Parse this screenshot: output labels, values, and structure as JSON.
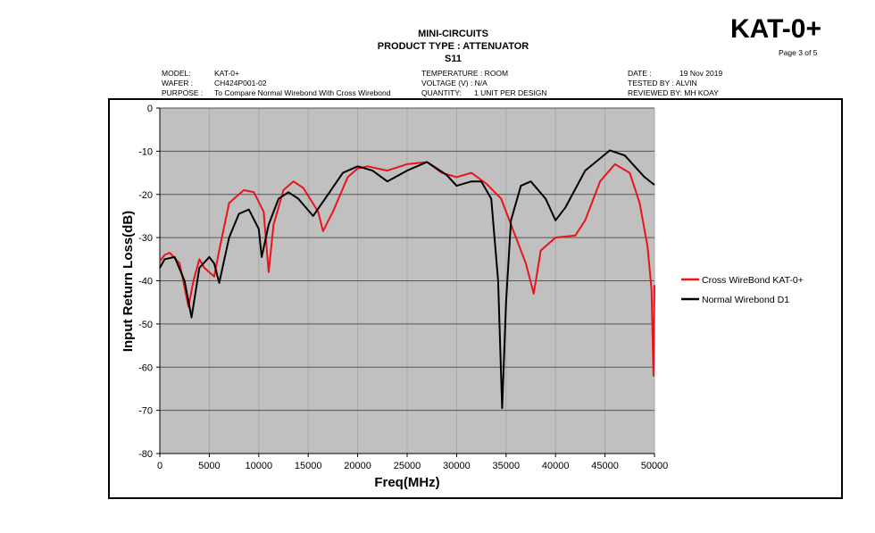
{
  "header": {
    "company": "MINI-CIRCUITS",
    "product_type": "PRODUCT TYPE : ATTENUATOR",
    "parameter": "S11",
    "part_number": "KAT-0+",
    "page": "Page 3 of 5",
    "model_label": "MODEL:",
    "model_value": "KAT-0+",
    "wafer_label": "WAFER :",
    "wafer_value": "CH424P001-02",
    "purpose_label": "PURPOSE :",
    "purpose_value": "To Compare Normal Wirebond With Cross Wirebond",
    "temperature": "TEMPERATURE : ROOM",
    "voltage": "VOLTAGE (V) : N/A",
    "quantity_label": "QUANTITY:",
    "quantity_value": "1 UNIT PER DESIGN",
    "date_label": "DATE :",
    "date_value": "19 Nov 2019",
    "tested_by": "TESTED BY : ALVIN",
    "reviewed_by": "REVIEWED BY: MH KOAY"
  },
  "chart_data": {
    "type": "line",
    "title": "S11",
    "xlabel": "Freq(MHz)",
    "ylabel": "Input Return Loss(dB)",
    "xlim": [
      0,
      50000
    ],
    "ylim": [
      -80,
      0
    ],
    "xticks": [
      "0",
      "5000",
      "10000",
      "15000",
      "20000",
      "25000",
      "30000",
      "35000",
      "40000",
      "45000",
      "50000"
    ],
    "yticks": [
      "0",
      "-10",
      "-20",
      "-30",
      "-40",
      "-50",
      "-60",
      "-70",
      "-80"
    ],
    "grid": true,
    "legend_position": "right",
    "series": [
      {
        "name": "Cross WireBond KAT-0+",
        "color": "#e8141b",
        "points": [
          [
            0,
            -35.5
          ],
          [
            500,
            -34
          ],
          [
            1000,
            -33.5
          ],
          [
            2000,
            -36
          ],
          [
            2900,
            -46
          ],
          [
            3400,
            -40
          ],
          [
            4000,
            -35
          ],
          [
            4500,
            -37
          ],
          [
            5500,
            -39
          ],
          [
            6000,
            -33
          ],
          [
            7000,
            -22
          ],
          [
            8500,
            -19
          ],
          [
            9500,
            -19.5
          ],
          [
            10500,
            -24
          ],
          [
            11000,
            -38
          ],
          [
            11500,
            -27
          ],
          [
            12500,
            -19
          ],
          [
            13500,
            -17
          ],
          [
            14500,
            -18.5
          ],
          [
            16000,
            -24
          ],
          [
            16500,
            -28.5
          ],
          [
            17500,
            -24
          ],
          [
            19000,
            -16
          ],
          [
            20000,
            -14
          ],
          [
            21000,
            -13.5
          ],
          [
            23000,
            -14.5
          ],
          [
            25000,
            -13
          ],
          [
            27000,
            -12.5
          ],
          [
            28500,
            -15
          ],
          [
            30000,
            -16
          ],
          [
            31500,
            -15
          ],
          [
            33000,
            -17.5
          ],
          [
            34500,
            -21
          ],
          [
            36000,
            -30
          ],
          [
            37000,
            -36
          ],
          [
            37800,
            -43
          ],
          [
            38500,
            -33
          ],
          [
            40000,
            -30
          ],
          [
            42000,
            -29.5
          ],
          [
            43000,
            -26
          ],
          [
            44500,
            -17
          ],
          [
            46000,
            -13
          ],
          [
            47500,
            -15
          ],
          [
            48500,
            -22
          ],
          [
            49300,
            -32
          ],
          [
            49700,
            -42
          ],
          [
            49900,
            -62
          ],
          [
            50000,
            -41
          ]
        ]
      },
      {
        "name": "Normal Wirebond D1",
        "color": "#000000",
        "points": [
          [
            0,
            -37
          ],
          [
            500,
            -35
          ],
          [
            1500,
            -34.5
          ],
          [
            2500,
            -40
          ],
          [
            3200,
            -48.5
          ],
          [
            4000,
            -37
          ],
          [
            5000,
            -34.5
          ],
          [
            5500,
            -36
          ],
          [
            6000,
            -40.5
          ],
          [
            7000,
            -30
          ],
          [
            8000,
            -24.5
          ],
          [
            9000,
            -23.5
          ],
          [
            10000,
            -28
          ],
          [
            10300,
            -34.5
          ],
          [
            11000,
            -27
          ],
          [
            12000,
            -21
          ],
          [
            13000,
            -19.5
          ],
          [
            14000,
            -21
          ],
          [
            15500,
            -25
          ],
          [
            17000,
            -20
          ],
          [
            18500,
            -15
          ],
          [
            20000,
            -13.5
          ],
          [
            21500,
            -14.5
          ],
          [
            23000,
            -17
          ],
          [
            25000,
            -14.5
          ],
          [
            27000,
            -12.5
          ],
          [
            29000,
            -15.5
          ],
          [
            30000,
            -18
          ],
          [
            31500,
            -17
          ],
          [
            32500,
            -17
          ],
          [
            33500,
            -21
          ],
          [
            34200,
            -40
          ],
          [
            34600,
            -69.5
          ],
          [
            35000,
            -45
          ],
          [
            35500,
            -26
          ],
          [
            36500,
            -18
          ],
          [
            37500,
            -17
          ],
          [
            39000,
            -21
          ],
          [
            40000,
            -26
          ],
          [
            41000,
            -23
          ],
          [
            43000,
            -14.5
          ],
          [
            45500,
            -9.8
          ],
          [
            47000,
            -11
          ],
          [
            49000,
            -16
          ],
          [
            50000,
            -17.8
          ]
        ]
      }
    ]
  }
}
